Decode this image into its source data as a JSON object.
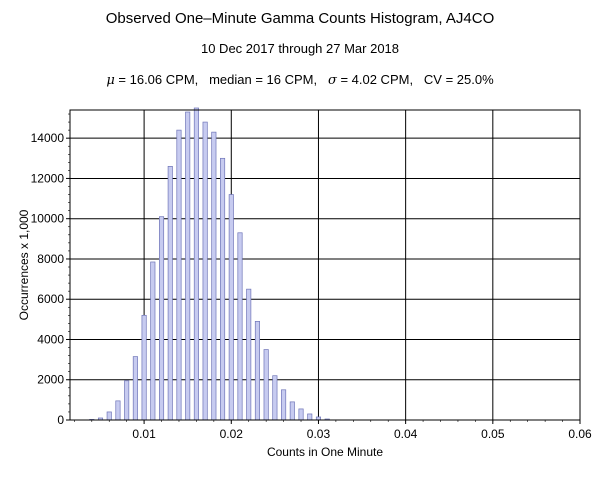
{
  "chart_data": {
    "type": "bar",
    "title": "Observed One–Minute Gamma Counts Histogram, AJ4CO",
    "subtitle": "10 Dec 2017 through 27 Mar 2018",
    "stats": {
      "mu_symbol": "μ",
      "mu_text": " = 16.06 CPM,   median = 16 CPM,   ",
      "sigma_symbol": "σ",
      "sigma_text": " = 4.02 CPM,   CV = 25.0%"
    },
    "xlabel": "Counts in One Minute",
    "ylabel": "Occurrences x 1,000",
    "xlim": [
      0.0015,
      0.06
    ],
    "ylim": [
      0,
      15400
    ],
    "x_ticks": [
      0.01,
      0.02,
      0.03,
      0.04,
      0.05,
      0.06
    ],
    "x_tick_labels": [
      "0.01",
      "0.02",
      "0.03",
      "0.04",
      "0.05",
      "0.06"
    ],
    "y_ticks": [
      0,
      2000,
      4000,
      6000,
      8000,
      10000,
      12000,
      14000
    ],
    "y_tick_labels": [
      "0",
      "2000",
      "4000",
      "6000",
      "8000",
      "10000",
      "12000",
      "14000"
    ],
    "grid": true,
    "bar_width": 0.0005,
    "x": [
      0.004,
      0.005,
      0.006,
      0.007,
      0.008,
      0.009,
      0.01,
      0.011,
      0.012,
      0.013,
      0.014,
      0.015,
      0.016,
      0.017,
      0.018,
      0.019,
      0.02,
      0.021,
      0.022,
      0.023,
      0.024,
      0.025,
      0.026,
      0.027,
      0.028,
      0.029,
      0.03,
      0.031
    ],
    "values": [
      30,
      100,
      400,
      950,
      1950,
      3150,
      5200,
      7850,
      10100,
      12600,
      14400,
      15300,
      15500,
      14800,
      14300,
      13000,
      11200,
      9300,
      6500,
      4900,
      3500,
      2200,
      1500,
      900,
      550,
      300,
      150,
      50
    ],
    "colors": {
      "bar_fill": "#c7cbf0",
      "bar_stroke": "#6f75b8",
      "grid": "#000000",
      "frame": "#000000"
    }
  }
}
